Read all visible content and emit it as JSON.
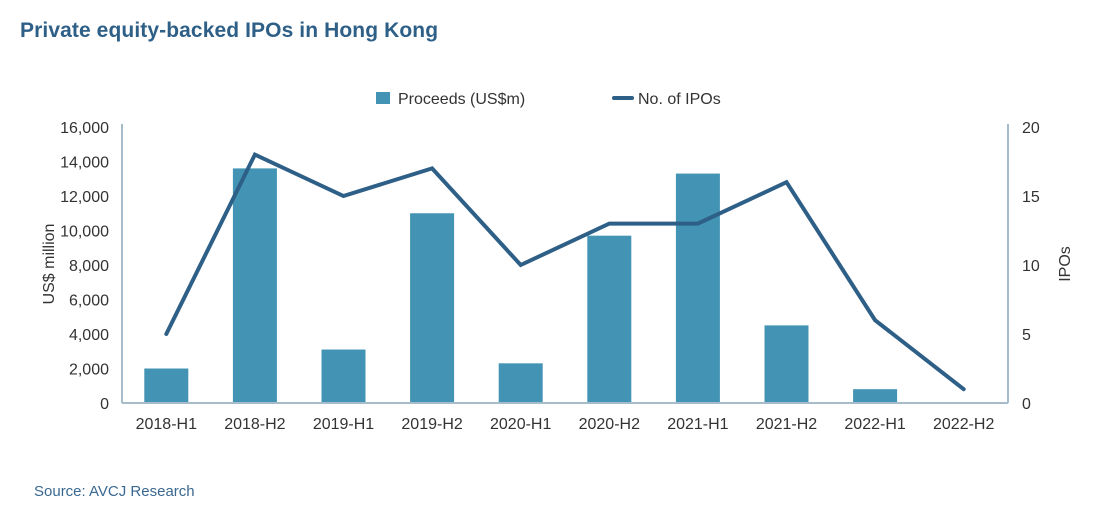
{
  "chart_data": {
    "type": "bar",
    "title": "Private equity-backed IPOs in Hong Kong",
    "source": "Source: AVCJ Research",
    "categories": [
      "2018-H1",
      "2018-H2",
      "2019-H1",
      "2019-H2",
      "2020-H1",
      "2020-H2",
      "2021-H1",
      "2021-H2",
      "2022-H1",
      "2022-H2"
    ],
    "series": [
      {
        "name": "Proceeds (US$m)",
        "type": "bar",
        "axis": "left",
        "color": "#4394b4",
        "values": [
          2000,
          13600,
          3100,
          11000,
          2300,
          9700,
          13300,
          4500,
          800,
          0
        ]
      },
      {
        "name": "No. of IPOs",
        "type": "line",
        "axis": "right",
        "color": "#2e5f87",
        "values": [
          5,
          18,
          15,
          17,
          10,
          13,
          13,
          16,
          6,
          1
        ]
      }
    ],
    "ylabel": "US$ million",
    "ylim": [
      0,
      16000
    ],
    "yticks": [
      0,
      2000,
      4000,
      6000,
      8000,
      10000,
      12000,
      14000,
      16000
    ],
    "ytick_labels": [
      "0",
      "2,000",
      "4,000",
      "6,000",
      "8,000",
      "10,000",
      "12,000",
      "14,000",
      "16,000"
    ],
    "y2label": "IPOs",
    "y2lim": [
      0,
      20
    ],
    "y2ticks": [
      0,
      5,
      10,
      15,
      20
    ],
    "y2tick_labels": [
      "0",
      "5",
      "10",
      "15",
      "20"
    ],
    "xlabel": "",
    "grid": false,
    "legend_position": "top-center",
    "axis_color": "#a7bccb"
  }
}
